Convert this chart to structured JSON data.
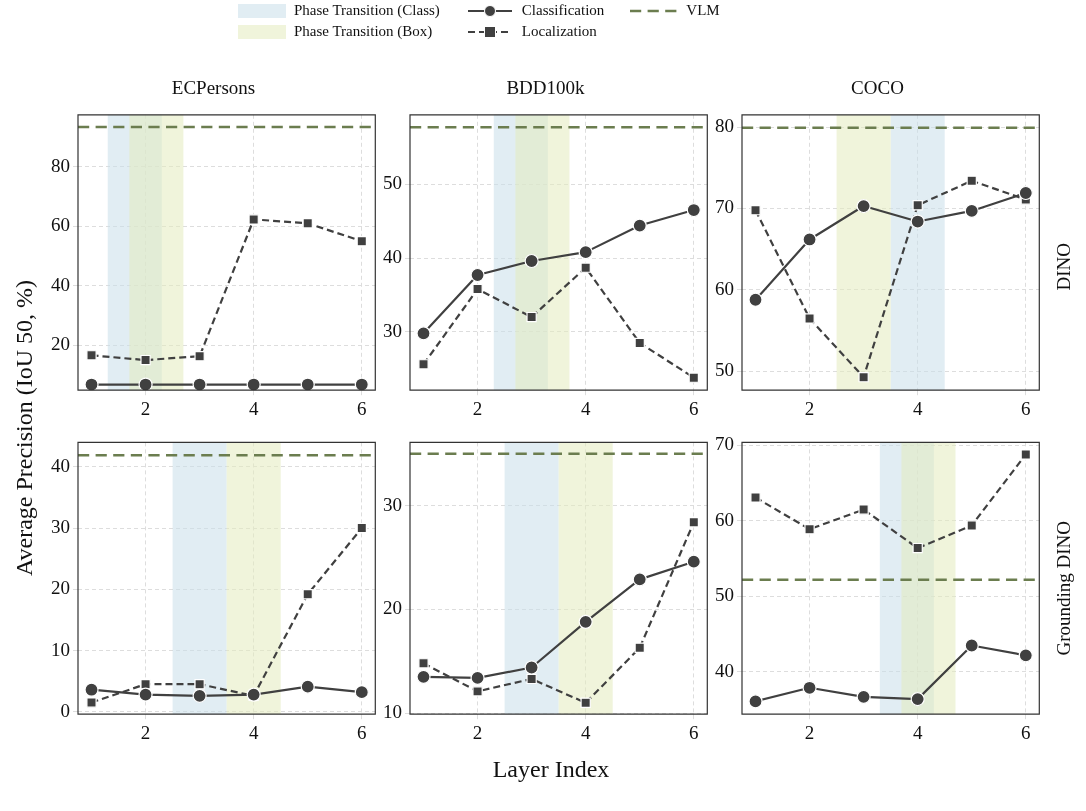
{
  "chart_data": [
    {
      "type": "line",
      "title": "ECPersons",
      "ylabel": "Average Precision (IoU 50, %)",
      "x": [
        1,
        2,
        3,
        4,
        5,
        6
      ],
      "xlim": [
        0.75,
        6.25
      ],
      "xticks": [
        2,
        4,
        6
      ],
      "ylim": [
        5,
        97.4
      ],
      "yticks": [
        20,
        40,
        60,
        80
      ],
      "grid": true,
      "legend": "top",
      "series": [
        {
          "name": "Classification",
          "color": "#404040",
          "marker": "circle",
          "line_style": "solid",
          "values": [
            6.9,
            6.9,
            6.9,
            6.9,
            6.9,
            6.9
          ]
        },
        {
          "name": "Localization",
          "color": "#404040",
          "marker": "square",
          "line_style": "dashed",
          "values": [
            16.7,
            15.1,
            16.4,
            62.3,
            61,
            55
          ]
        }
      ],
      "bands": [
        {
          "axis": "x",
          "from": 1.3,
          "to": 2.3,
          "label": "Phase Transition (Class)",
          "color": "#c9dfea"
        },
        {
          "axis": "x",
          "from": 1.7,
          "to": 2.7,
          "label": "Phase Transition (Box)",
          "color": "#e3ebbd"
        }
      ],
      "ref_lines": [
        {
          "axis": "y",
          "value": 93.3,
          "label": "VLM",
          "color": "#6b7d4f",
          "line_style": "dashed"
        }
      ]
    },
    {
      "type": "line",
      "title": "BDD100k",
      "x": [
        1,
        2,
        3,
        4,
        5,
        6
      ],
      "xlim": [
        0.75,
        6.25
      ],
      "xticks": [
        2,
        4,
        6
      ],
      "ylim": [
        22.1,
        59.4
      ],
      "yticks": [
        30,
        40,
        50
      ],
      "grid": true,
      "series": [
        {
          "color": "#404040",
          "marker": "circle",
          "line_style": "solid",
          "values": [
            29.8,
            37.7,
            39.6,
            40.8,
            44.4,
            46.5
          ]
        },
        {
          "color": "#404040",
          "marker": "square",
          "line_style": "dashed",
          "values": [
            25.6,
            35.8,
            32,
            38.7,
            28.5,
            23.8
          ]
        }
      ],
      "bands": [
        {
          "axis": "x",
          "from": 2.3,
          "to": 3.3,
          "color": "#c9dfea"
        },
        {
          "axis": "x",
          "from": 2.7,
          "to": 3.7,
          "color": "#e3ebbd"
        }
      ],
      "ref_lines": [
        {
          "axis": "y",
          "value": 57.7,
          "color": "#6b7d4f",
          "line_style": "dashed"
        }
      ]
    },
    {
      "type": "line",
      "title": "COCO",
      "y2label": "DINO",
      "x": [
        1,
        2,
        3,
        4,
        5,
        6
      ],
      "xlim": [
        0.75,
        6.25
      ],
      "xticks": [
        2,
        4,
        6
      ],
      "ylim": [
        47.7,
        81.5
      ],
      "yticks": [
        50,
        60,
        70,
        80
      ],
      "grid": true,
      "series": [
        {
          "color": "#404040",
          "marker": "circle",
          "line_style": "solid",
          "values": [
            58.8,
            66.2,
            70.3,
            68.4,
            69.7,
            71.9
          ]
        },
        {
          "color": "#404040",
          "marker": "square",
          "line_style": "dashed",
          "values": [
            69.8,
            56.5,
            49.3,
            70.4,
            73.4,
            71.1
          ]
        }
      ],
      "bands": [
        {
          "axis": "x",
          "from": 3.5,
          "to": 4.5,
          "color": "#c9dfea"
        },
        {
          "axis": "x",
          "from": 2.5,
          "to": 3.5,
          "color": "#e3ebbd"
        }
      ],
      "ref_lines": [
        {
          "axis": "y",
          "value": 79.9,
          "color": "#6b7d4f",
          "line_style": "dashed"
        }
      ]
    },
    {
      "type": "line",
      "x": [
        1,
        2,
        3,
        4,
        5,
        6
      ],
      "xlim": [
        0.75,
        6.25
      ],
      "xticks": [
        2,
        4,
        6
      ],
      "ylim": [
        -0.4,
        44
      ],
      "yticks": [
        0,
        10,
        20,
        30,
        40
      ],
      "grid": true,
      "series": [
        {
          "color": "#404040",
          "marker": "circle",
          "line_style": "solid",
          "values": [
            3.6,
            2.8,
            2.6,
            2.8,
            4.1,
            3.2
          ]
        },
        {
          "color": "#404040",
          "marker": "square",
          "line_style": "dashed",
          "values": [
            1.5,
            4.5,
            4.5,
            2.6,
            19.2,
            30
          ]
        }
      ],
      "bands": [
        {
          "axis": "x",
          "from": 2.5,
          "to": 3.5,
          "color": "#c9dfea"
        },
        {
          "axis": "x",
          "from": 3.5,
          "to": 4.5,
          "color": "#e3ebbd"
        }
      ],
      "ref_lines": [
        {
          "axis": "y",
          "value": 41.9,
          "color": "#6b7d4f",
          "line_style": "dashed"
        }
      ]
    },
    {
      "type": "line",
      "xlabel": "Layer Index",
      "x": [
        1,
        2,
        3,
        4,
        5,
        6
      ],
      "xlim": [
        0.75,
        6.25
      ],
      "xticks": [
        2,
        4,
        6
      ],
      "ylim": [
        9.9,
        36.1
      ],
      "yticks": [
        10,
        20,
        30
      ],
      "grid": true,
      "series": [
        {
          "color": "#404040",
          "marker": "circle",
          "line_style": "solid",
          "values": [
            13.5,
            13.4,
            14.4,
            18.8,
            22.9,
            24.6
          ]
        },
        {
          "color": "#404040",
          "marker": "square",
          "line_style": "dashed",
          "values": [
            14.8,
            12.1,
            13.3,
            11,
            16.3,
            28.4
          ]
        }
      ],
      "bands": [
        {
          "axis": "x",
          "from": 2.5,
          "to": 3.5,
          "color": "#c9dfea"
        },
        {
          "axis": "x",
          "from": 3.5,
          "to": 4.5,
          "color": "#e3ebbd"
        }
      ],
      "ref_lines": [
        {
          "axis": "y",
          "value": 35,
          "color": "#6b7d4f",
          "line_style": "dashed"
        }
      ]
    },
    {
      "type": "line",
      "y2label": "Grounding DINO",
      "x": [
        1,
        2,
        3,
        4,
        5,
        6
      ],
      "xlim": [
        0.75,
        6.25
      ],
      "xticks": [
        2,
        4,
        6
      ],
      "ylim": [
        34.4,
        70.4
      ],
      "yticks": [
        40,
        50,
        60,
        70
      ],
      "grid": true,
      "series": [
        {
          "color": "#404040",
          "marker": "circle",
          "line_style": "solid",
          "values": [
            36.1,
            37.9,
            36.7,
            36.4,
            43.5,
            42.2
          ]
        },
        {
          "color": "#404040",
          "marker": "square",
          "line_style": "dashed",
          "values": [
            63.1,
            58.9,
            61.5,
            56.4,
            59.4,
            68.8
          ]
        }
      ],
      "bands": [
        {
          "axis": "x",
          "from": 3.3,
          "to": 4.3,
          "color": "#c9dfea"
        },
        {
          "axis": "x",
          "from": 3.7,
          "to": 4.7,
          "color": "#e3ebbd"
        }
      ],
      "ref_lines": [
        {
          "axis": "y",
          "value": 52.2,
          "color": "#6b7d4f",
          "line_style": "dashed"
        }
      ]
    }
  ]
}
